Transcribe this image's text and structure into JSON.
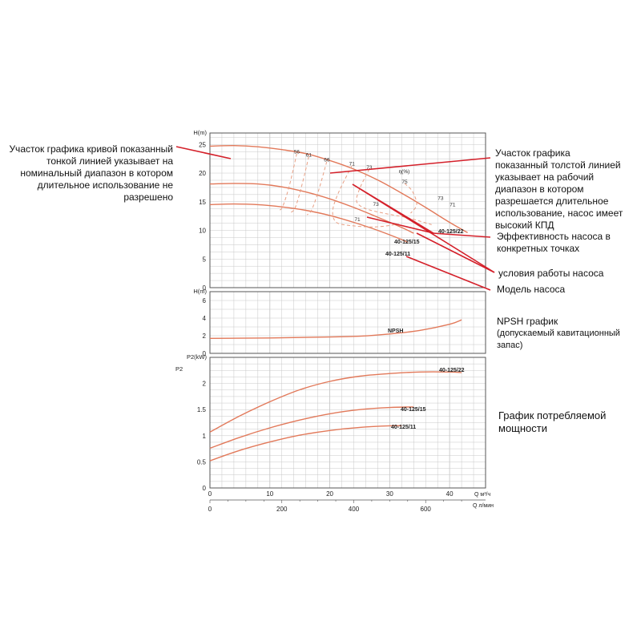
{
  "colors": {
    "curve": "#e2795a",
    "curve_dashed": "#e8a085",
    "callout": "#d4202a",
    "grid": "#c8c8c8",
    "frame": "#555555",
    "text": "#222222"
  },
  "annotations": {
    "thin_line_note": "Участок графика кривой показанный тонкой линией указывает на номинальный диапазон в котором длительное использование не разрешено",
    "thick_line_note": "Участок графика показанный толстой линией указывает на рабочий диапазон в котором разрешается длительное использование, насос имеет высокий КПД",
    "efficiency_note": "Эффективность насоса в конкретных точках",
    "conditions_note": "условия работы насоса",
    "model_note": "Модель насоса",
    "npsh_note_title": "NPSH график",
    "npsh_note_sub": "(допускаемый кавитационный запас)",
    "power_note": "График потребляемой мощности"
  },
  "chart_data": [
    {
      "type": "line",
      "panel": "head",
      "ylabel": "H(m)",
      "ylim": [
        0,
        27
      ],
      "yticks": [
        0,
        5,
        10,
        15,
        20,
        25
      ],
      "xlim": [
        0,
        46
      ],
      "grid": true,
      "series": [
        {
          "name": "40-125/22",
          "x": [
            0,
            4,
            8,
            12,
            16,
            20,
            24,
            28,
            32,
            36,
            40,
            43
          ],
          "y": [
            24.7,
            24.8,
            24.6,
            24.1,
            23.4,
            22.2,
            20.7,
            18.8,
            16.5,
            14.0,
            11.4,
            9.6
          ]
        },
        {
          "name": "40-125/15",
          "x": [
            0,
            4,
            8,
            12,
            16,
            20,
            24,
            28,
            32,
            34
          ],
          "y": [
            18.1,
            18.2,
            18.1,
            17.6,
            16.7,
            15.5,
            14.0,
            12.3,
            10.5,
            9.5
          ]
        },
        {
          "name": "40-125/11",
          "x": [
            0,
            4,
            8,
            12,
            16,
            20,
            24,
            28,
            32,
            33
          ],
          "y": [
            14.5,
            14.6,
            14.5,
            14.1,
            13.5,
            12.6,
            11.4,
            10.0,
            8.4,
            7.9
          ]
        }
      ],
      "efficiency_label": "η(%)",
      "efficiency_points": [
        {
          "label": "56",
          "x": 14.5,
          "y": 23.4
        },
        {
          "label": "61",
          "x": 16.5,
          "y": 22.9
        },
        {
          "label": "66",
          "x": 19.5,
          "y": 22.0
        },
        {
          "label": "71",
          "x": 23.7,
          "y": 21.3
        },
        {
          "label": "73",
          "x": 26.6,
          "y": 20.7
        },
        {
          "label": "75",
          "x": 32.5,
          "y": 18.2
        },
        {
          "label": "73",
          "x": 38.5,
          "y": 15.3
        },
        {
          "label": "71",
          "x": 40.5,
          "y": 14.2
        },
        {
          "label": "73",
          "x": 27.7,
          "y": 14.3
        },
        {
          "label": "71",
          "x": 24.6,
          "y": 11.6
        }
      ]
    },
    {
      "type": "line",
      "panel": "npsh",
      "ylabel": "H(m)",
      "ylim": [
        0,
        7
      ],
      "yticks": [
        0,
        2,
        4,
        6
      ],
      "xlim": [
        0,
        46
      ],
      "grid": true,
      "series": [
        {
          "name": "NPSH",
          "x": [
            0,
            5,
            10,
            15,
            20,
            25,
            30,
            35,
            40,
            42
          ],
          "y": [
            1.7,
            1.72,
            1.75,
            1.8,
            1.85,
            1.95,
            2.2,
            2.6,
            3.3,
            3.8
          ]
        }
      ]
    },
    {
      "type": "line",
      "panel": "power",
      "ylabel": "P2(kW)",
      "ylabel_clip": "P2",
      "ylim": [
        0,
        2.5
      ],
      "yticks": [
        0,
        0.5,
        1,
        1.5,
        2
      ],
      "xlim": [
        0,
        46
      ],
      "xticks_m3h": [
        0,
        10,
        20,
        30,
        40
      ],
      "xticks_lmin": [
        0,
        200,
        400,
        600
      ],
      "xlabel_m3h": "Q  м³/ч",
      "xlabel_lmin": "Q  л/мин",
      "grid": true,
      "series": [
        {
          "name": "40-125/22",
          "x": [
            0,
            5,
            10,
            15,
            20,
            25,
            30,
            35,
            40,
            42
          ],
          "y": [
            1.07,
            1.38,
            1.65,
            1.88,
            2.04,
            2.14,
            2.19,
            2.22,
            2.22,
            2.21
          ]
        },
        {
          "name": "40-125/15",
          "x": [
            0,
            5,
            10,
            15,
            20,
            25,
            30,
            34
          ],
          "y": [
            0.76,
            0.97,
            1.15,
            1.3,
            1.42,
            1.5,
            1.54,
            1.55
          ]
        },
        {
          "name": "40-125/11",
          "x": [
            0,
            5,
            10,
            15,
            20,
            25,
            30,
            32
          ],
          "y": [
            0.52,
            0.72,
            0.88,
            1.01,
            1.1,
            1.16,
            1.19,
            1.19
          ]
        }
      ]
    }
  ]
}
